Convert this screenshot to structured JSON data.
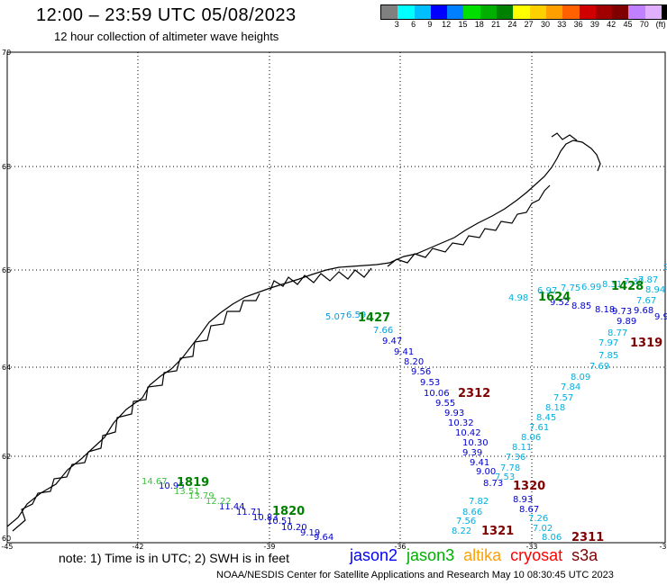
{
  "header": {
    "title": "12:00 – 23:59 UTC 05/08/2023",
    "subtitle": "12 hour collection of altimeter wave heights"
  },
  "colorbar": {
    "colors": [
      "#808080",
      "#00ffff",
      "#00bfff",
      "#0000ff",
      "#0080ff",
      "#00e000",
      "#00b000",
      "#008000",
      "#ffff00",
      "#ffd000",
      "#ffa000",
      "#ff6000",
      "#d00000",
      "#a00000",
      "#800000",
      "#c080ff",
      "#e0b0ff",
      "#000000"
    ],
    "labels": [
      "3",
      "6",
      "9",
      "12",
      "15",
      "18",
      "21",
      "24",
      "27",
      "30",
      "33",
      "36",
      "39",
      "42",
      "45",
      "70",
      "(ft)"
    ]
  },
  "axes": {
    "lon_ticks": [
      "-45",
      "-42",
      "-39",
      "-36",
      "-33",
      "-30"
    ],
    "lat_ticks": [
      "70",
      "68",
      "66",
      "64",
      "62",
      "60"
    ]
  },
  "passes": [
    {
      "satellite": "jason2",
      "color": "#0000d0",
      "time": "2312",
      "time_color": "#800000",
      "values": [
        "9.47",
        "9.41",
        "8.20",
        "9.56",
        "9.53",
        "10.06",
        "9.55",
        "9.93",
        "10.32",
        "10.42",
        "10.30",
        "9.39",
        "9.41",
        "9.00",
        "8.73",
        "8.93",
        "8.67"
      ]
    },
    {
      "satellite": "jason2",
      "color": "#0000d0",
      "time": "1820",
      "time_color": "#008000",
      "values": [
        "10.95",
        "11.44",
        "11.71",
        "10.83",
        "10.51",
        "10.20",
        "9.19",
        "9.64"
      ]
    },
    {
      "satellite": "jason2",
      "color": "#0000d0",
      "time": "1624",
      "time_color": "#008000",
      "values": [
        "9.52",
        "8.85",
        "8.18",
        "9.73",
        "9.68",
        "9.89",
        "9.9"
      ]
    },
    {
      "satellite": "jason2",
      "color": "#00a0e0",
      "time": "1427",
      "time_color": "#008000",
      "values": [
        "5.07",
        "6.59",
        "7.66"
      ]
    },
    {
      "satellite": "sentinel3a",
      "color": "#00b0e0",
      "time": "1319",
      "time_color": "#800000",
      "values": [
        "8.77",
        "7.97",
        "7.85",
        "7.69",
        "8.09",
        "7.84",
        "7.57",
        "8.18",
        "8.45",
        "7.61",
        "8.06",
        "8.11",
        "7.36",
        "7.78",
        "7.53",
        "7.82",
        "8.66",
        "7.56",
        "8.22"
      ]
    },
    {
      "satellite": "sentinel3a",
      "color": "#00b0e0",
      "time": "2311",
      "time_color": "#800000",
      "values": [
        "7.26",
        "7.02",
        "8.06"
      ]
    },
    {
      "satellite": "sentinel3a",
      "color": "#00b0e0",
      "time": "1428",
      "time_color": "#008000",
      "values": [
        "4.98",
        "6.97",
        "7.75",
        "6.99",
        "8.31",
        "7.30",
        "7.87",
        "7.67",
        "8.94",
        "9.00"
      ]
    },
    {
      "satellite": "sentinel3a",
      "color": "#40c040",
      "time": "1819",
      "time_color": "#008000",
      "values": [
        "14.67",
        "13.51",
        "13.79",
        "12.22"
      ]
    },
    {
      "satellite": "sentinel3a",
      "color": "#800000",
      "time": "1320",
      "time_color": "#800000",
      "values": []
    },
    {
      "satellite": "sentinel3a",
      "color": "#800000",
      "time": "1321",
      "time_color": "#800000",
      "values": []
    }
  ],
  "footer": {
    "note": "note:  1) Time is in UTC;  2) SWH is in feet",
    "credit": "NOAA/NESDIS Center for Satellite Applications and Research     May 10 08:30:45 UTC 2023",
    "legend": [
      {
        "label": "jason2",
        "color": "#0000ff"
      },
      {
        "label": "jason3",
        "color": "#00b000"
      },
      {
        "label": "altika",
        "color": "#ffa000"
      },
      {
        "label": "cryosat",
        "color": "#ff0000"
      },
      {
        "label": "s3a",
        "color": "#800000"
      }
    ]
  }
}
